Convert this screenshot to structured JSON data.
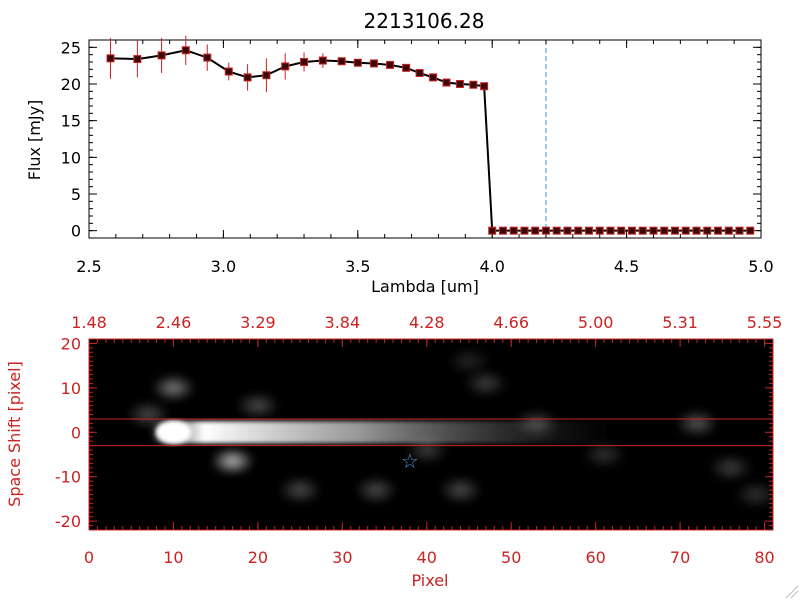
{
  "figure_title": "2213106.28",
  "chart_data": [
    {
      "type": "line",
      "title": "2213106.28",
      "xlabel": "Lambda [um]",
      "ylabel": "Flux [mJy]",
      "xlim": [
        2.5,
        5.0
      ],
      "ylim": [
        -1,
        26
      ],
      "x_ticks": [
        2.5,
        3.0,
        3.5,
        4.0,
        4.5,
        5.0
      ],
      "x_tick_labels": [
        "2.5",
        "3.0",
        "3.5",
        "4.0",
        "4.5",
        "5.0"
      ],
      "y_ticks": [
        0,
        5,
        10,
        15,
        20,
        25
      ],
      "y_tick_labels": [
        "0",
        "5",
        "10",
        "15",
        "20",
        "25"
      ],
      "reference_line_x": 4.2,
      "series": [
        {
          "name": "Flux",
          "x": [
            2.58,
            2.68,
            2.77,
            2.86,
            2.94,
            3.02,
            3.09,
            3.16,
            3.23,
            3.3,
            3.37,
            3.44,
            3.5,
            3.56,
            3.62,
            3.68,
            3.73,
            3.78,
            3.83,
            3.88,
            3.93,
            3.97,
            4.0,
            4.04,
            4.08,
            4.12,
            4.16,
            4.2,
            4.24,
            4.28,
            4.32,
            4.36,
            4.4,
            4.44,
            4.48,
            4.52,
            4.56,
            4.6,
            4.64,
            4.68,
            4.72,
            4.76,
            4.8,
            4.84,
            4.88,
            4.92,
            4.96
          ],
          "y": [
            23.5,
            23.4,
            23.9,
            24.6,
            23.6,
            21.7,
            20.9,
            21.2,
            22.4,
            23.0,
            23.2,
            23.1,
            22.9,
            22.8,
            22.6,
            22.2,
            21.5,
            20.9,
            20.2,
            20.0,
            19.9,
            19.7,
            0,
            0,
            0,
            0,
            0,
            0,
            0,
            0,
            0,
            0,
            0,
            0,
            0,
            0,
            0,
            0,
            0,
            0,
            0,
            0,
            0,
            0,
            0,
            0,
            0
          ],
          "errors": [
            2.8,
            2.5,
            2.4,
            2.0,
            1.8,
            1.2,
            1.8,
            2.3,
            1.8,
            1.3,
            1.0,
            0.4,
            0.3,
            0.3,
            0.3,
            0.3,
            0.3,
            0.3,
            0.3,
            0.3,
            0.3,
            0.3,
            0,
            0,
            0,
            0,
            0,
            0,
            0,
            0,
            0,
            0,
            0,
            0,
            0,
            0,
            0,
            0,
            0,
            0,
            0,
            0,
            0,
            0,
            0,
            0,
            0
          ]
        }
      ]
    },
    {
      "type": "heatmap",
      "xlabel": "Pixel",
      "ylabel": "Space Shift [pixel]",
      "xlim": [
        0,
        81
      ],
      "ylim": [
        -22,
        21
      ],
      "x_ticks": [
        0,
        10,
        20,
        30,
        40,
        50,
        60,
        70,
        80
      ],
      "x_tick_labels": [
        "0",
        "10",
        "20",
        "30",
        "40",
        "50",
        "60",
        "70",
        "80"
      ],
      "y_ticks": [
        -20,
        -10,
        0,
        10,
        20
      ],
      "y_tick_labels": [
        "-20",
        "-10",
        "0",
        "10",
        "20"
      ],
      "top_axis_ticks": [
        0,
        10,
        20,
        30,
        40,
        50,
        60,
        70,
        80
      ],
      "top_axis_labels": [
        "1.48",
        "2.46",
        "3.29",
        "3.84",
        "4.28",
        "4.66",
        "5.00",
        "5.31",
        "5.55"
      ],
      "aperture_lines_y": [
        3,
        -3
      ],
      "star_marker": {
        "x": 38,
        "y": -6.5
      },
      "spectrum_trace": {
        "peak_x": 10,
        "y": 0,
        "fade_x": 55
      },
      "blobs": [
        {
          "x": 17,
          "y": -6.5,
          "intensity": 0.75
        },
        {
          "x": 10,
          "y": 10,
          "intensity": 0.5
        },
        {
          "x": 7,
          "y": 4,
          "intensity": 0.3
        },
        {
          "x": 20,
          "y": 6,
          "intensity": 0.3
        },
        {
          "x": 25,
          "y": -13,
          "intensity": 0.3
        },
        {
          "x": 34,
          "y": -13,
          "intensity": 0.3
        },
        {
          "x": 40,
          "y": -4,
          "intensity": 0.25
        },
        {
          "x": 44,
          "y": -13,
          "intensity": 0.3
        },
        {
          "x": 47,
          "y": 11,
          "intensity": 0.25
        },
        {
          "x": 53,
          "y": 2,
          "intensity": 0.3
        },
        {
          "x": 61,
          "y": -5,
          "intensity": 0.2
        },
        {
          "x": 72,
          "y": 2,
          "intensity": 0.35
        },
        {
          "x": 76,
          "y": -8,
          "intensity": 0.25
        },
        {
          "x": 79,
          "y": -14,
          "intensity": 0.2
        },
        {
          "x": 45,
          "y": 16,
          "intensity": 0.15
        }
      ]
    }
  ]
}
